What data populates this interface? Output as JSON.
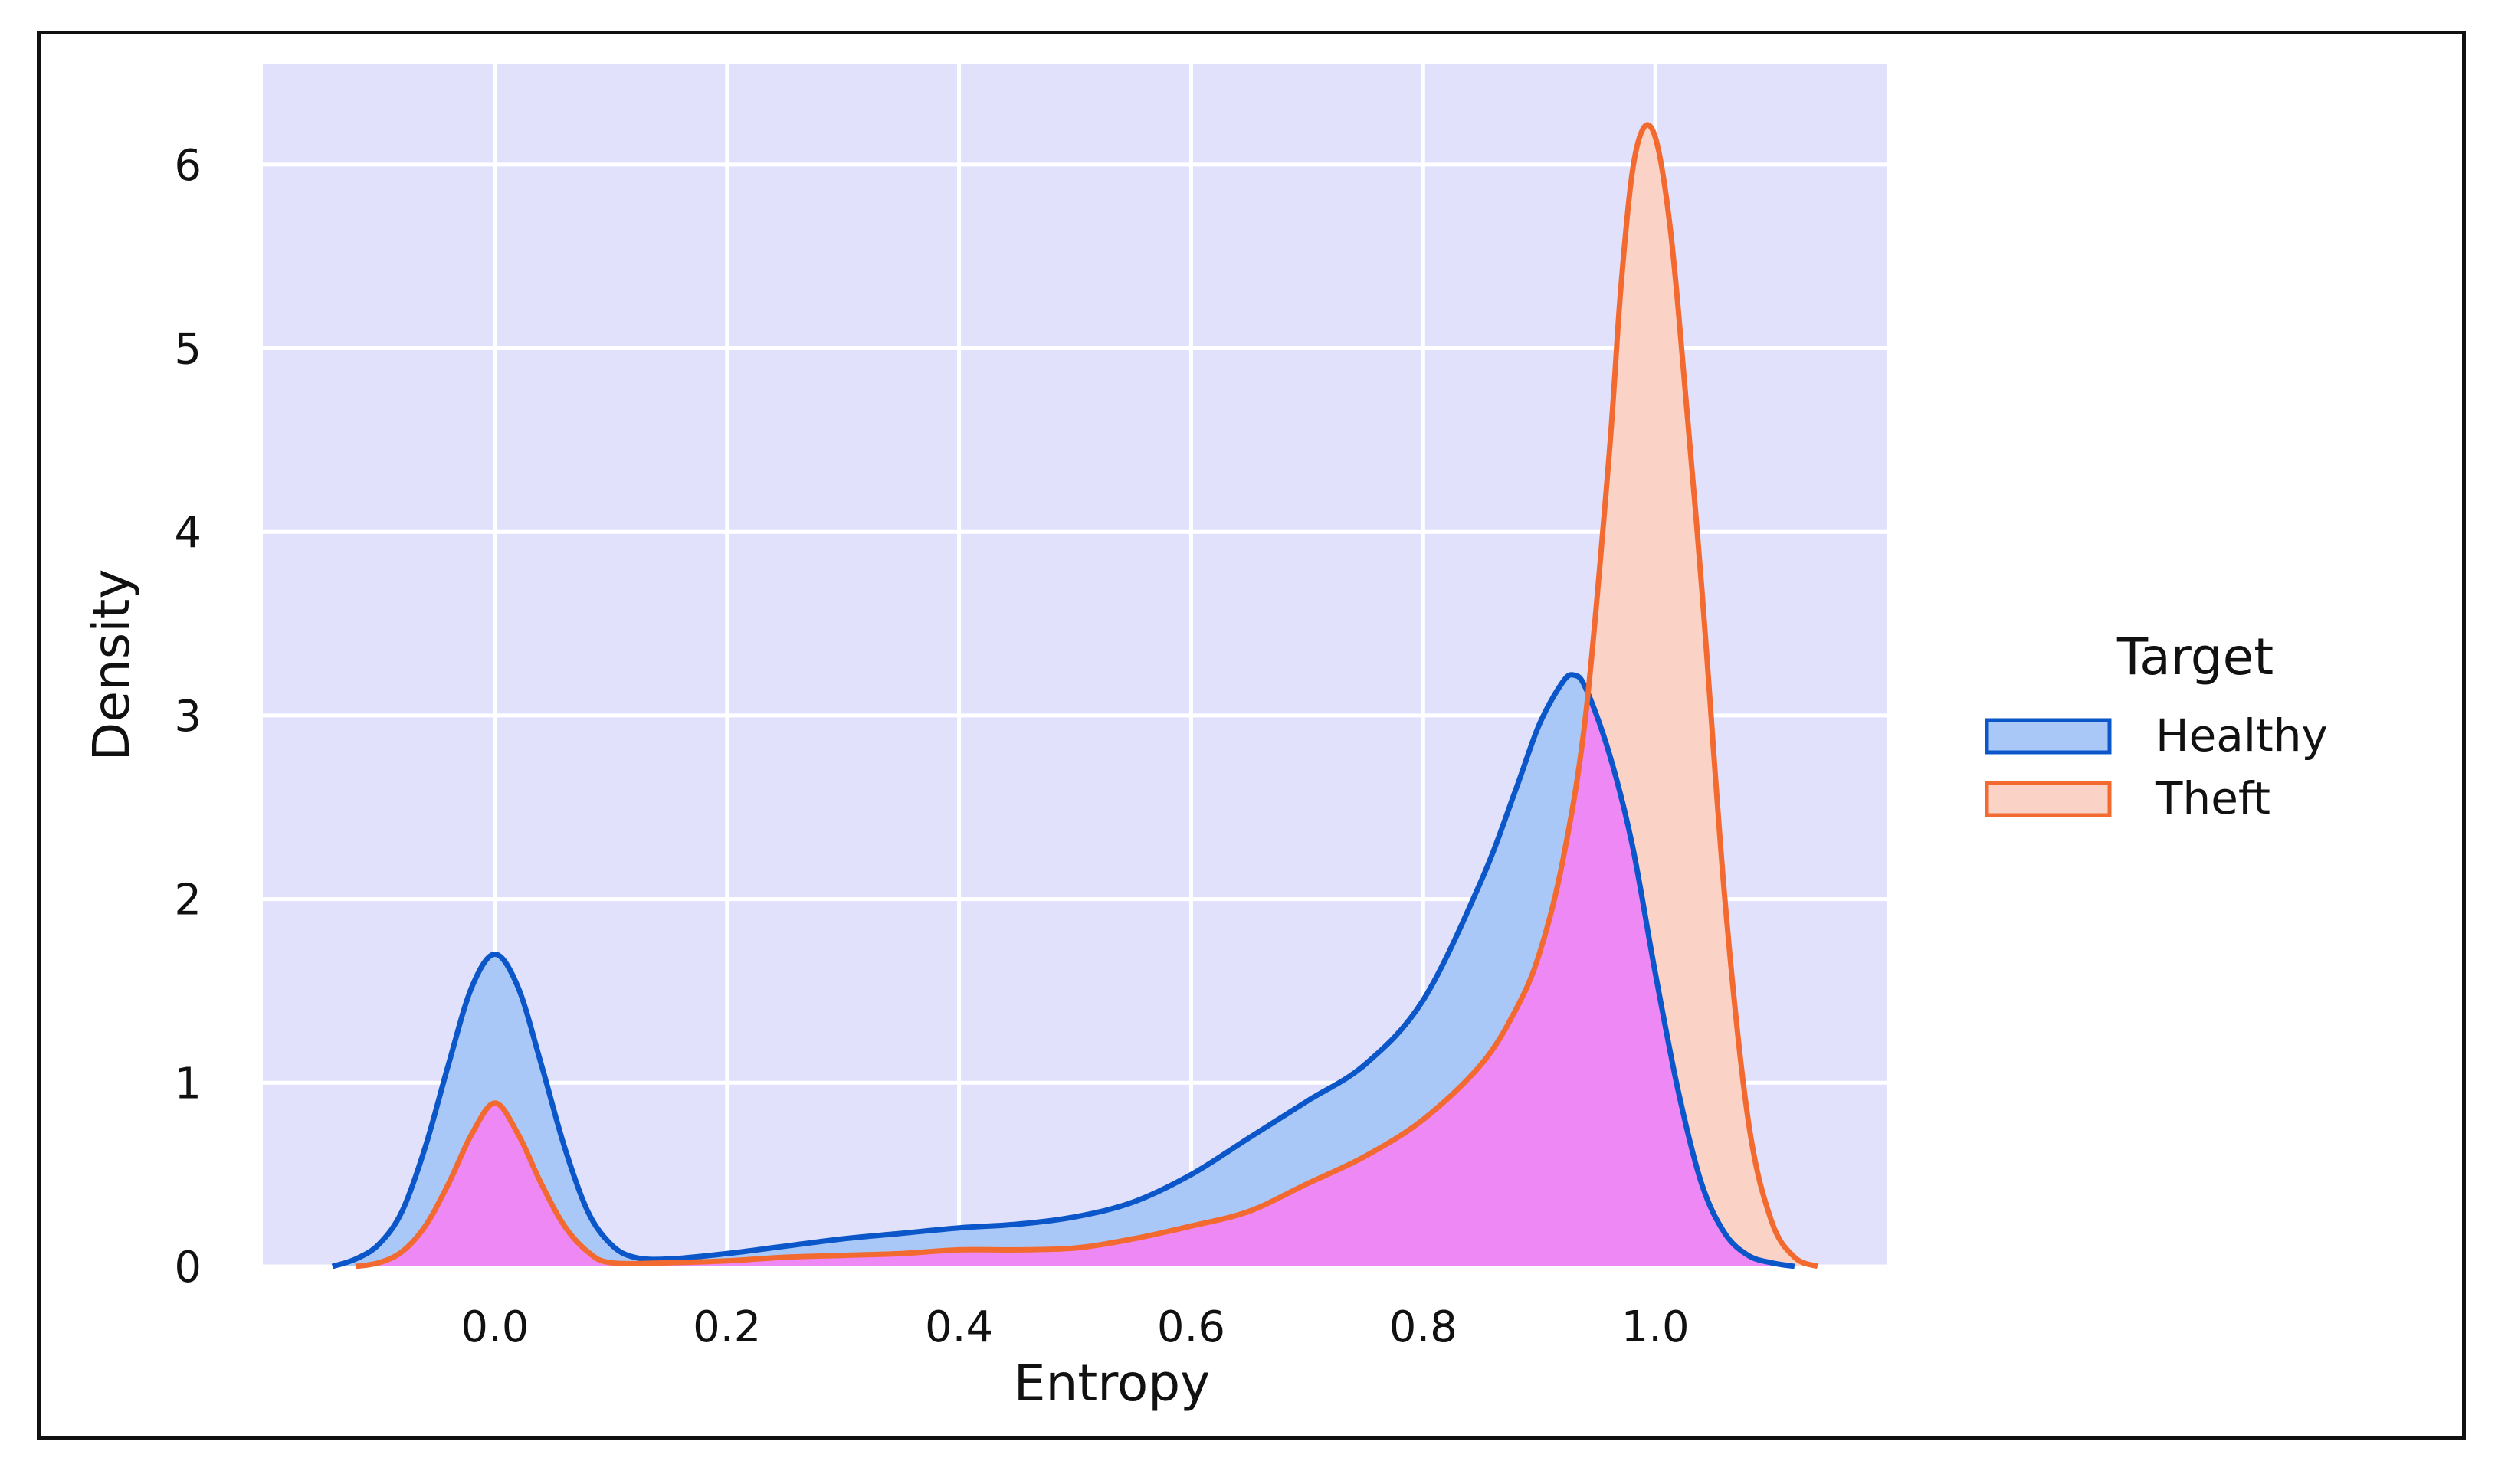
{
  "chart_data": {
    "type": "area",
    "xlabel": "Entropy",
    "ylabel": "Density",
    "xlim": [
      -0.2,
      1.2
    ],
    "ylim": [
      0,
      6.55
    ],
    "x_ticks": [
      "0.0",
      "0.2",
      "0.4",
      "0.6",
      "0.8",
      "1.0"
    ],
    "y_ticks": [
      "0",
      "1",
      "2",
      "3",
      "4",
      "5",
      "6"
    ],
    "grid": true,
    "plot_background": "#e1e1fb",
    "overlap_color": "#ee88f4",
    "legend": {
      "title": "Target",
      "placement": "right",
      "entries": [
        "Healthy",
        "Theft"
      ]
    },
    "series": [
      {
        "name": "Healthy",
        "line_color": "#0b57c9",
        "fill_color": "#a9c8f7",
        "x": [
          -0.14,
          -0.12,
          -0.1,
          -0.08,
          -0.06,
          -0.04,
          -0.02,
          0.0,
          0.02,
          0.04,
          0.06,
          0.08,
          0.1,
          0.12,
          0.15,
          0.2,
          0.25,
          0.3,
          0.35,
          0.4,
          0.45,
          0.5,
          0.55,
          0.6,
          0.65,
          0.7,
          0.75,
          0.8,
          0.85,
          0.88,
          0.9,
          0.92,
          0.93,
          0.94,
          0.96,
          0.98,
          1.0,
          1.02,
          1.04,
          1.06,
          1.08,
          1.1,
          1.12
        ],
        "y": [
          0.0,
          0.04,
          0.12,
          0.3,
          0.65,
          1.1,
          1.52,
          1.7,
          1.52,
          1.1,
          0.65,
          0.3,
          0.12,
          0.05,
          0.04,
          0.07,
          0.11,
          0.15,
          0.18,
          0.21,
          0.23,
          0.27,
          0.35,
          0.5,
          0.7,
          0.9,
          1.1,
          1.45,
          2.1,
          2.6,
          2.95,
          3.18,
          3.22,
          3.15,
          2.8,
          2.3,
          1.6,
          0.95,
          0.45,
          0.18,
          0.06,
          0.02,
          0.0
        ]
      },
      {
        "name": "Theft",
        "line_color": "#f26a2f",
        "fill_color": "#fbd2c6",
        "x": [
          -0.12,
          -0.1,
          -0.08,
          -0.06,
          -0.04,
          -0.02,
          0.0,
          0.02,
          0.04,
          0.06,
          0.08,
          0.1,
          0.15,
          0.2,
          0.25,
          0.3,
          0.35,
          0.4,
          0.45,
          0.5,
          0.55,
          0.6,
          0.65,
          0.7,
          0.75,
          0.8,
          0.85,
          0.88,
          0.9,
          0.92,
          0.94,
          0.96,
          0.97,
          0.98,
          0.99,
          1.0,
          1.01,
          1.02,
          1.04,
          1.06,
          1.08,
          1.1,
          1.12,
          1.14
        ],
        "y": [
          0.0,
          0.02,
          0.08,
          0.22,
          0.45,
          0.72,
          0.89,
          0.72,
          0.45,
          0.22,
          0.08,
          0.02,
          0.02,
          0.03,
          0.05,
          0.06,
          0.07,
          0.09,
          0.09,
          0.1,
          0.15,
          0.22,
          0.3,
          0.45,
          0.6,
          0.8,
          1.1,
          1.4,
          1.7,
          2.2,
          3.0,
          4.4,
          5.3,
          5.95,
          6.2,
          6.15,
          5.8,
          5.2,
          3.7,
          2.0,
          0.8,
          0.25,
          0.05,
          0.0
        ]
      }
    ]
  }
}
